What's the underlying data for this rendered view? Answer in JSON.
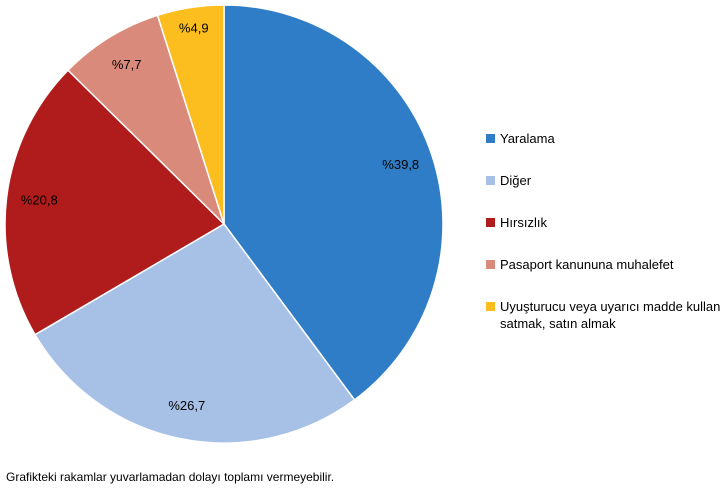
{
  "chart_data": {
    "type": "pie",
    "categories": [
      "Yaralama",
      "Diğer",
      "Hırsızlık",
      "Pasaport kanununa muhalefet",
      "Uyuşturucu veya uyarıcı madde kullanmak, satmak, satın almak"
    ],
    "values": [
      39.8,
      26.7,
      20.8,
      7.7,
      4.9
    ],
    "value_labels": [
      "%39,8",
      "%26,7",
      "%20,8",
      "%7,7",
      "%4,9"
    ],
    "colors": [
      "#2e7dc6",
      "#a7c1e6",
      "#b01b1c",
      "#d98a7b",
      "#fbbe1e"
    ],
    "legend": "right",
    "note": "Grafikteki rakamlar yuvarlamadan dolayı toplamı vermeyebilir."
  }
}
